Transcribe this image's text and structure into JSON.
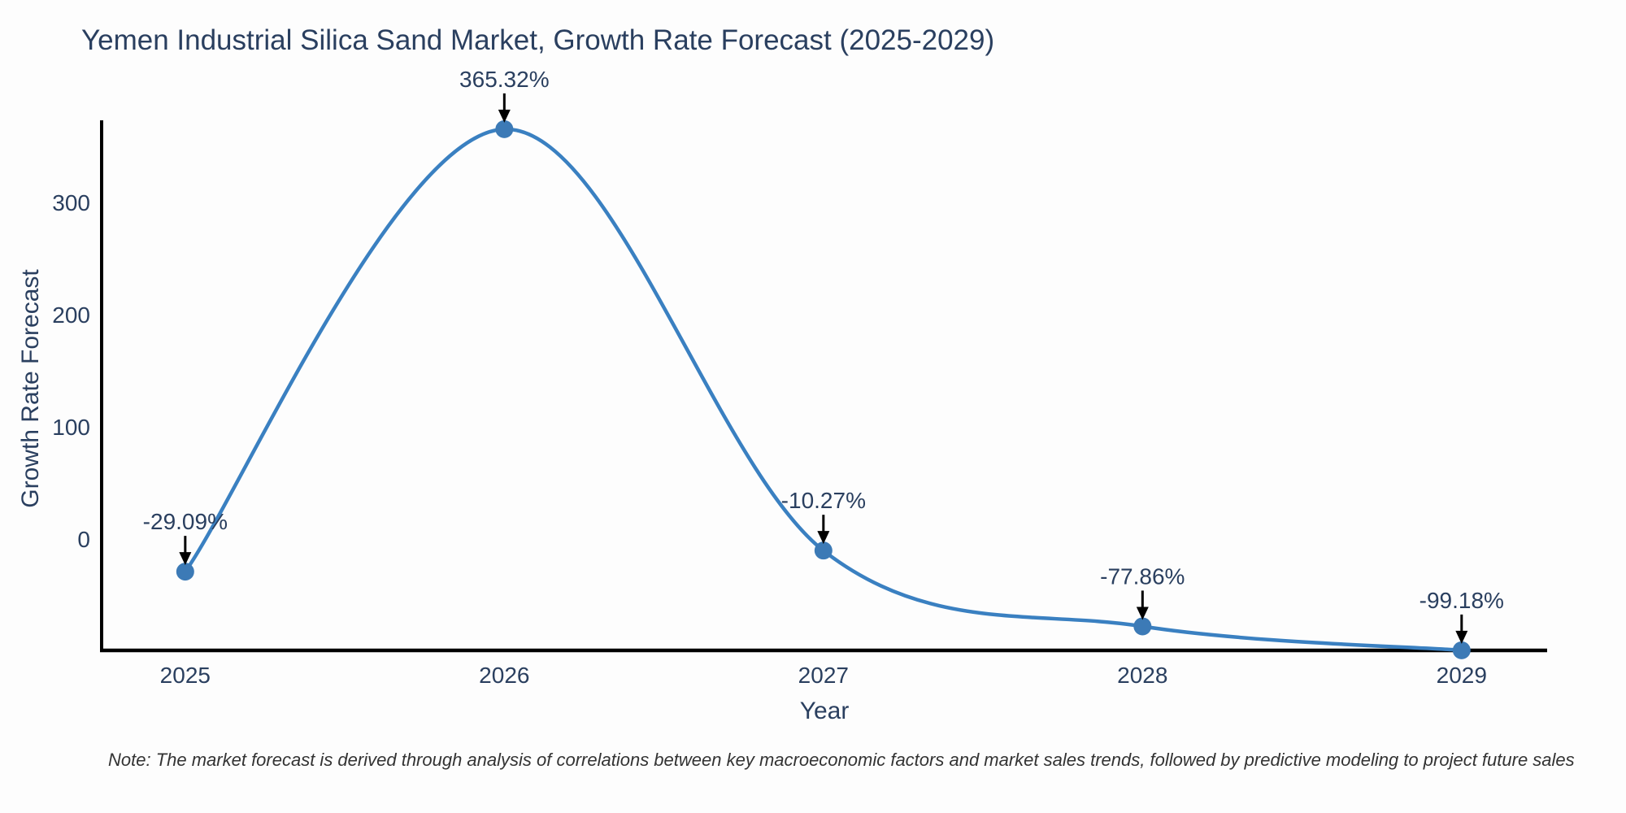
{
  "chart_data": {
    "type": "line",
    "title": "Yemen Industrial Silica Sand Market, Growth Rate Forecast (2025-2029)",
    "xlabel": "Year",
    "ylabel": "Growth Rate Forecast",
    "x": [
      2025,
      2026,
      2027,
      2028,
      2029
    ],
    "values": [
      -29.09,
      365.32,
      -10.27,
      -77.86,
      -99.18
    ],
    "point_labels": [
      "-29.09%",
      "365.32%",
      "-10.27%",
      "-77.86%",
      "-99.18%"
    ],
    "xticks": [
      "2025",
      "2026",
      "2027",
      "2028",
      "2029"
    ],
    "yticks": [
      0,
      100,
      200,
      300
    ],
    "xlim": [
      2024.738,
      2029.268
    ],
    "ylim": [
      -99.28,
      368.12
    ],
    "line_shape": "spline",
    "grid": false,
    "legend": false,
    "colors": {
      "line": "#3a80c1",
      "marker": "#3c7ab6",
      "text": "#2a3f5f",
      "axis": "#000000",
      "arrow": "#000000",
      "note": "#333333",
      "background": "#fdfdfd"
    }
  },
  "footnote": {
    "text": "Note: The market forecast is derived through analysis of correlations between key macroeconomic factors and market sales trends, followed by predictive modeling to project future sales"
  }
}
